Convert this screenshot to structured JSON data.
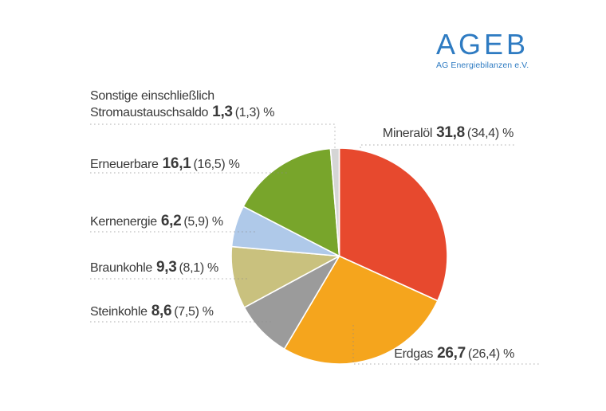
{
  "brand": {
    "name": "AGEB",
    "subtitle": "AG Energiebilanzen e.V.",
    "color": "#2E7BC2"
  },
  "text_color": "#3A3A3A",
  "chart_data": {
    "type": "pie",
    "title": "",
    "unit": "%",
    "direction": "clockwise",
    "start_angle_deg": 0,
    "legend_position": "callout-labels",
    "leader_line_color": "#8C8C8C",
    "slice_border_color": "#FFFFFF",
    "slices": [
      {
        "id": "mineraloel",
        "label": "Mineralöl",
        "value": 31.8,
        "prev_value": 34.4,
        "value_display": "31,8",
        "paren_display": "(34,4) %",
        "color": "#E7492E"
      },
      {
        "id": "erdgas",
        "label": "Erdgas",
        "value": 26.7,
        "prev_value": 26.4,
        "value_display": "26,7",
        "paren_display": "(26,4) %",
        "color": "#F5A51D"
      },
      {
        "id": "steinkohle",
        "label": "Steinkohle",
        "value": 8.6,
        "prev_value": 7.5,
        "value_display": "8,6",
        "paren_display": "(7,5) %",
        "color": "#9B9B9B"
      },
      {
        "id": "braunkohle",
        "label": "Braunkohle",
        "value": 9.3,
        "prev_value": 8.1,
        "value_display": "9,3",
        "paren_display": "(8,1) %",
        "color": "#C9C17E"
      },
      {
        "id": "kernenergie",
        "label": "Kernenergie",
        "value": 6.2,
        "prev_value": 5.9,
        "value_display": "6,2",
        "paren_display": "(5,9) %",
        "color": "#AFC9E9"
      },
      {
        "id": "erneuerbare",
        "label": "Erneuerbare",
        "value": 16.1,
        "prev_value": 16.5,
        "value_display": "16,1",
        "paren_display": "(16,5) %",
        "color": "#78A52B"
      },
      {
        "id": "sonstige",
        "label": "Sonstige einschließlich Stromaustauschsaldo",
        "label_line1": "Sonstige einschließlich",
        "label_line2": "Stromaustauschsaldo",
        "value": 1.3,
        "prev_value": 1.3,
        "value_display": "1,3",
        "paren_display": "(1,3) %",
        "color": "#D5D5D5"
      }
    ]
  }
}
